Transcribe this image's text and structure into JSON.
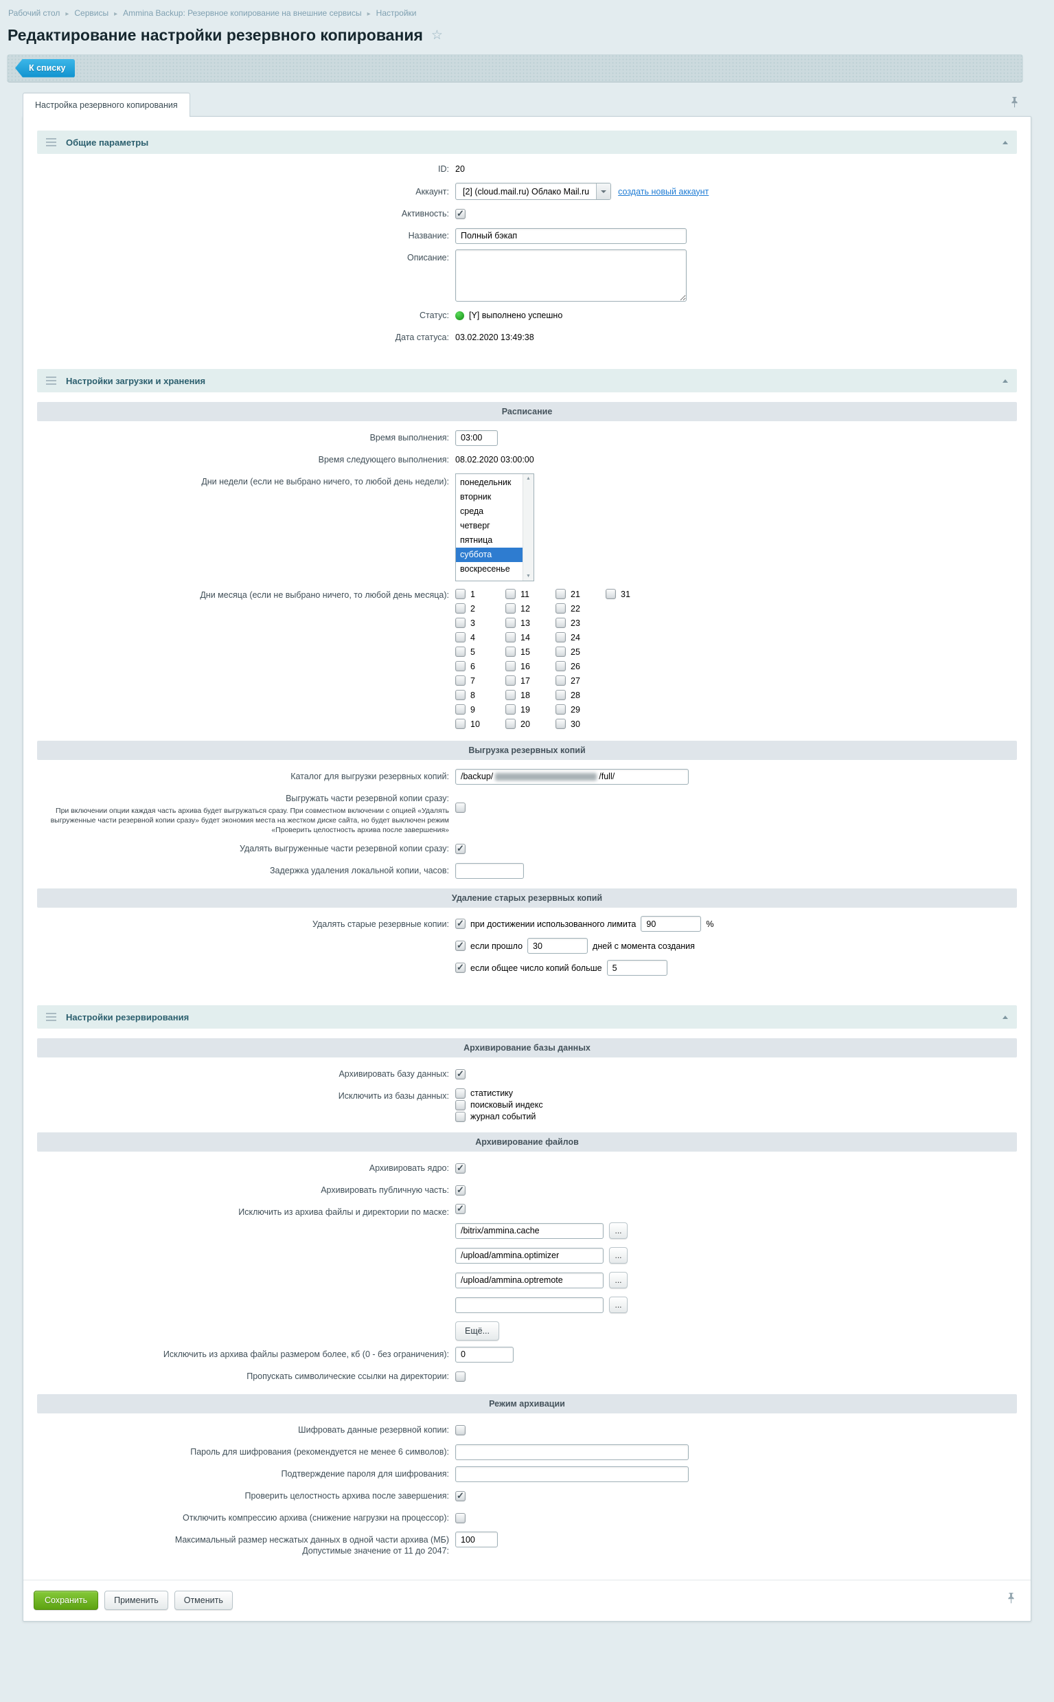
{
  "colors": {
    "accent_blue": "#25a3dc",
    "link_blue": "#1f7cd4",
    "selected_blue": "#2e7cd0",
    "status_green": "#1fae1f",
    "save_green": "#5da312",
    "section_header_bg": "#e2eeee",
    "subheader_bg": "#dfe5ea",
    "page_bg": "#e3ecef"
  },
  "icons": {
    "favorite_star": "☆",
    "breadcrumb_separator": "▸",
    "scroll_up": "▲",
    "scroll_down": "▼"
  },
  "breadcrumb": {
    "items": [
      "Рабочий стол",
      "Сервисы",
      "Ammina Backup: Резервное копирование на внешние сервисы",
      "Настройки"
    ]
  },
  "page": {
    "title": "Редактирование настройки резервного копирования"
  },
  "toolbar": {
    "back_button": "К списку"
  },
  "tabs": {
    "active": "Настройка резервного копирования"
  },
  "sections": {
    "general": {
      "title": "Общие параметры",
      "rows": {
        "id": {
          "label": "ID:",
          "value": "20"
        },
        "account": {
          "label": "Аккаунт:",
          "value": "[2] (cloud.mail.ru) Облако Mail.ru",
          "link": "создать новый аккаунт"
        },
        "active": {
          "label": "Активность:",
          "checked": true
        },
        "name": {
          "label": "Название:",
          "value": "Полный бэкап"
        },
        "description": {
          "label": "Описание:",
          "value": ""
        },
        "status": {
          "label": "Статус:",
          "value": "[Y] выполнено успешно"
        },
        "status_date": {
          "label": "Дата статуса:",
          "value": "03.02.2020 13:49:38"
        }
      }
    },
    "storage": {
      "title": "Настройки загрузки и хранения",
      "schedule": {
        "header": "Расписание",
        "time": {
          "label": "Время выполнения:",
          "value": "03:00"
        },
        "next_time": {
          "label": "Время следующего выполнения:",
          "value": "08.02.2020 03:00:00"
        },
        "weekdays": {
          "label": "Дни недели (если не выбрано ничего, то любой день недели):",
          "options": [
            "понедельник",
            "вторник",
            "среда",
            "четверг",
            "пятница",
            "суббота",
            "воскресенье"
          ],
          "selected": "суббота"
        },
        "monthdays": {
          "label": "Дни месяца (если не выбрано ничего, то любой день месяца):",
          "days": [
            1,
            2,
            3,
            4,
            5,
            6,
            7,
            8,
            9,
            10,
            11,
            12,
            13,
            14,
            15,
            16,
            17,
            18,
            19,
            20,
            21,
            22,
            23,
            24,
            25,
            26,
            27,
            28,
            29,
            30,
            31
          ]
        }
      },
      "upload": {
        "header": "Выгрузка резервных копий",
        "catalog": {
          "label": "Каталог для выгрузки резервных копий:",
          "value_prefix": "/backup/",
          "value_suffix": "/full/",
          "redacted_middle": true
        },
        "upload_parts": {
          "label": "Выгружать части резервной копии сразу:",
          "note": "При включении опции каждая часть архива будет выгружаться сразу. При совместном включении с опцией «Удалять выгруженные части резервной копии сразу» будет экономия места на жестком диске сайта, но будет выключен режим «Проверить целостность архива после завершения»",
          "checked": false
        },
        "delete_parts": {
          "label": "Удалять выгруженные части резервной копии сразу:",
          "checked": true
        },
        "delete_delay": {
          "label": "Задержка удаления локальной копии, часов:",
          "value": ""
        }
      },
      "cleanup": {
        "header": "Удаление старых резервных копий",
        "label": "Удалять старые резервные копии:",
        "by_limit": {
          "checked": true,
          "text": "при достижении использованного лимита",
          "value": "90",
          "suffix": "%"
        },
        "by_age": {
          "checked": true,
          "text": "если прошло",
          "value": "30",
          "suffix": "дней с момента создания"
        },
        "by_count": {
          "checked": true,
          "text": "если общее число копий больше",
          "value": "5"
        }
      }
    },
    "backup": {
      "title": "Настройки резервирования",
      "db": {
        "header": "Архивирование базы данных",
        "archive_db": {
          "label": "Архивировать базу данных:",
          "checked": true
        },
        "exclude": {
          "label": "Исключить из базы данных:",
          "options": [
            "статистику",
            "поисковый индекс",
            "журнал событий"
          ]
        }
      },
      "files": {
        "header": "Архивирование файлов",
        "core": {
          "label": "Архивировать ядро:",
          "checked": true
        },
        "public": {
          "label": "Архивировать публичную часть:",
          "checked": true
        },
        "exclude_mask": {
          "label": "Исключить из архива файлы и директории по маске:",
          "checked": true,
          "values": [
            "/bitrix/ammina.cache",
            "/upload/ammina.optimizer",
            "/upload/ammina.optremote",
            ""
          ],
          "browse_button": "...",
          "more_button": "Ещё..."
        },
        "max_size": {
          "label": "Исключить из архива файлы размером более, кб (0 - без ограничения):",
          "value": "0"
        },
        "skip_symlinks": {
          "label": "Пропускать символические ссылки на директории:",
          "checked": false
        }
      },
      "mode": {
        "header": "Режим архивации",
        "encrypt": {
          "label": "Шифровать данные резервной копии:",
          "checked": false
        },
        "password": {
          "label": "Пароль для шифрования (рекомендуется не менее 6 символов):",
          "value": ""
        },
        "password_confirm": {
          "label": "Подтверждение пароля для шифрования:",
          "value": ""
        },
        "check_integrity": {
          "label": "Проверить целостность архива после завершения:",
          "checked": true
        },
        "disable_compression": {
          "label": "Отключить компрессию архива (снижение нагрузки на процессор):",
          "checked": false
        },
        "max_part": {
          "label_line1": "Максимальный размер несжатых данных в одной части архива (МБ)",
          "label_line2": "Допустимые значение от 11 до 2047:",
          "value": "100"
        }
      }
    }
  },
  "footer": {
    "save": "Сохранить",
    "apply": "Применить",
    "cancel": "Отменить"
  }
}
